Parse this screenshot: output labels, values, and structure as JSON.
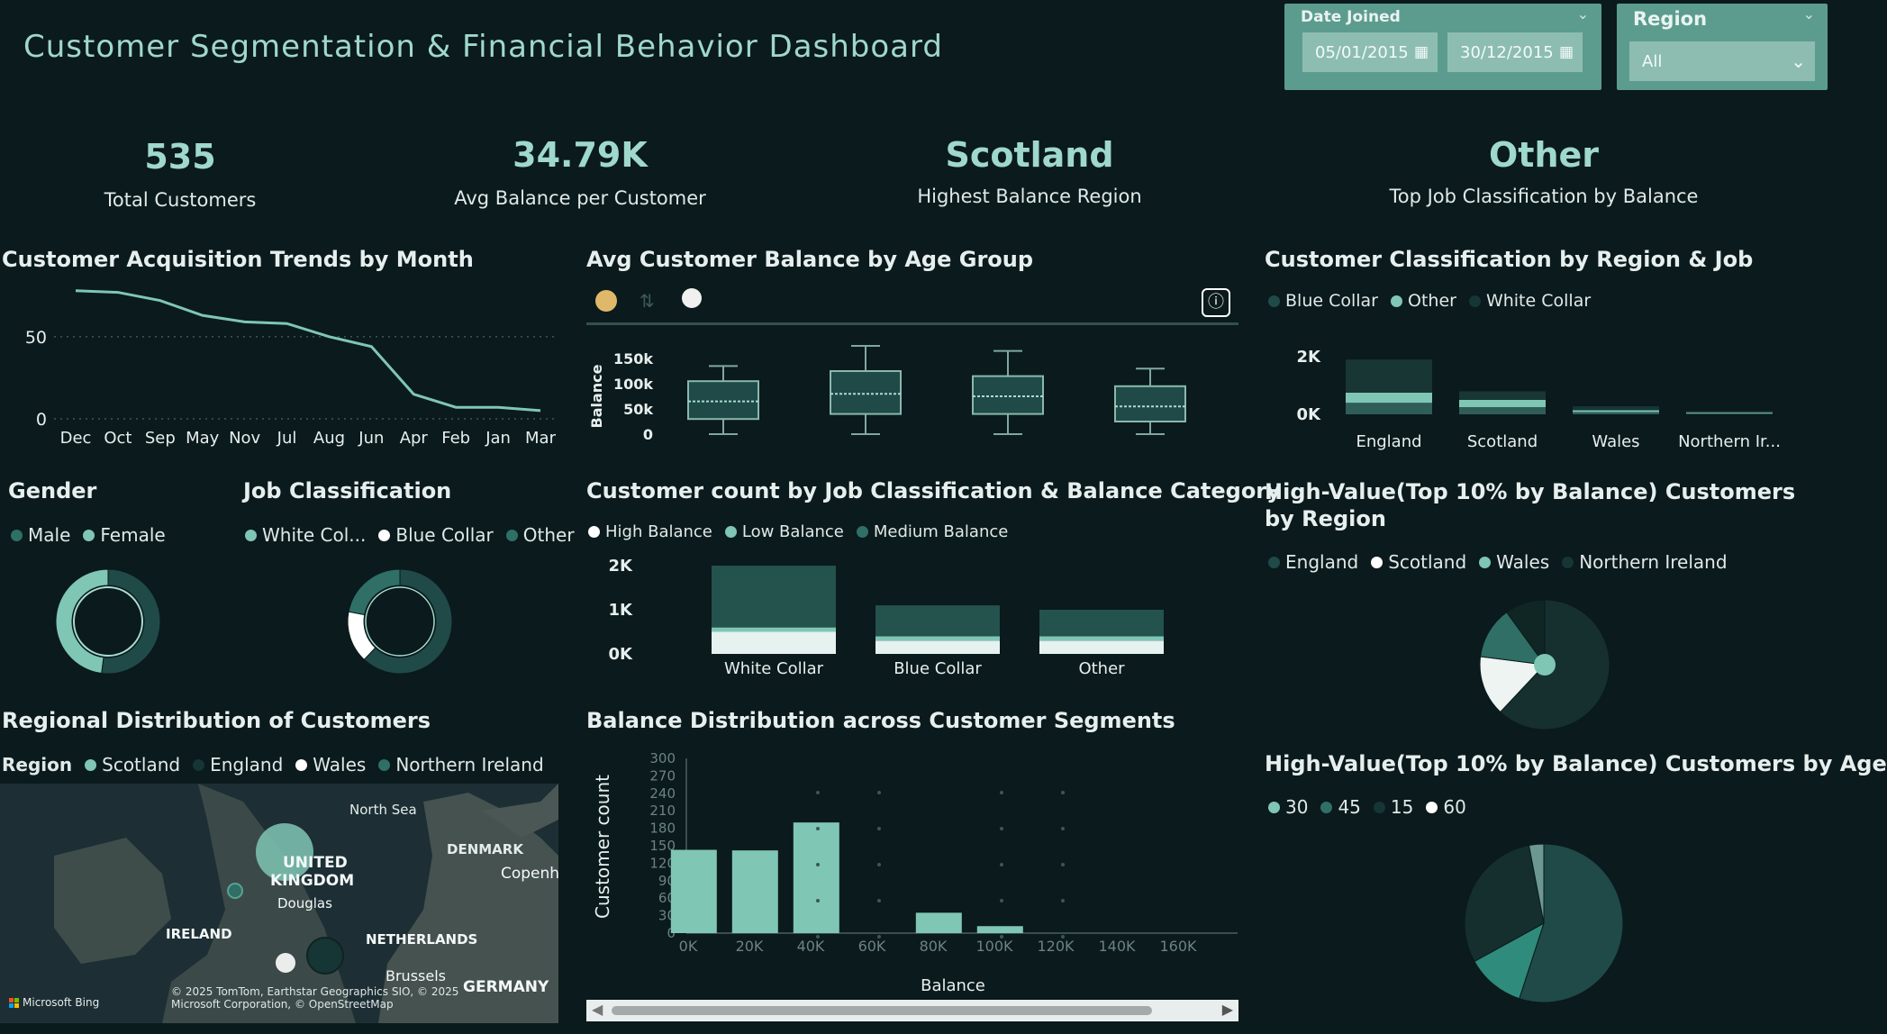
{
  "header": {
    "title": "Customer Segmentation & Financial Behavior Dashboard"
  },
  "filters": {
    "date_joined": {
      "label": "Date Joined",
      "start": "05/01/2015",
      "end": "30/12/2015"
    },
    "region": {
      "label": "Region",
      "value": "All"
    }
  },
  "kpis": [
    {
      "value": "535",
      "label": "Total Customers"
    },
    {
      "value": "34.79K",
      "label": "Avg Balance per Customer"
    },
    {
      "value": "Scotland",
      "label": "Highest Balance Region"
    },
    {
      "value": "Other",
      "label": "Top Job Classification by Balance"
    }
  ],
  "colors": {
    "bg": "#0b1a1c",
    "accent": "#7fc6b5",
    "accent_light": "#a8dccf",
    "teal_dark": "#1f4a47",
    "teal_mid": "#2f6f66",
    "white": "#ffffff"
  },
  "acquisition": {
    "title": "Customer Acquisition Trends by Month",
    "chart_data": {
      "type": "line",
      "categories": [
        "Dec",
        "Oct",
        "Sep",
        "May",
        "Nov",
        "Jul",
        "Aug",
        "Jun",
        "Apr",
        "Feb",
        "Jan",
        "Mar"
      ],
      "values": [
        78,
        77,
        72,
        63,
        59,
        58,
        50,
        44,
        15,
        7,
        7,
        5
      ],
      "yticks": [
        "50",
        "0"
      ],
      "ylim": [
        0,
        85
      ]
    }
  },
  "age_balance": {
    "title": "Avg Customer Balance by Age Group",
    "icons": [
      "palette-icon",
      "sort-icon",
      "globe-icon",
      "info-icon"
    ],
    "chart_data": {
      "type": "box",
      "ylabel": "Balance",
      "yticks": [
        "150k",
        "100k",
        "50k",
        "0"
      ],
      "ylim": [
        0,
        150000
      ],
      "boxes": [
        {
          "min": 0,
          "q1": 30000,
          "median": 65000,
          "q3": 105000,
          "max": 135000
        },
        {
          "min": 0,
          "q1": 40000,
          "median": 80000,
          "q3": 125000,
          "max": 175000
        },
        {
          "min": 0,
          "q1": 40000,
          "median": 75000,
          "q3": 115000,
          "max": 165000
        },
        {
          "min": 0,
          "q1": 25000,
          "median": 55000,
          "q3": 95000,
          "max": 130000
        }
      ]
    }
  },
  "region_job": {
    "title": "Customer Classification by Region & Job",
    "legend": [
      {
        "label": "Blue Collar",
        "color": "#1f4a47"
      },
      {
        "label": "Other",
        "color": "#7fc6b5"
      },
      {
        "label": "White Collar",
        "color": "#153634"
      }
    ],
    "chart_data": {
      "type": "bar",
      "stacked": true,
      "categories": [
        "England",
        "Scotland",
        "Wales",
        "Northern Ir..."
      ],
      "yticks": [
        "2K",
        "0K"
      ],
      "ylim": [
        0,
        2500
      ],
      "series": [
        {
          "name": "Blue Collar",
          "values": [
            400,
            250,
            80,
            40
          ]
        },
        {
          "name": "Other",
          "values": [
            350,
            250,
            60,
            30
          ]
        },
        {
          "name": "White Collar",
          "values": [
            1150,
            300,
            140,
            40
          ]
        }
      ]
    }
  },
  "gender": {
    "title": "Gender",
    "legend": [
      {
        "label": "Male",
        "color": "#2f6f66"
      },
      {
        "label": "Female",
        "color": "#7fc6b5"
      }
    ],
    "chart_data": {
      "type": "pie",
      "labels": [
        "Male",
        "Female"
      ],
      "values": [
        52,
        48
      ]
    }
  },
  "job_class": {
    "title": "Job Classification",
    "legend": [
      {
        "label": "White Col...",
        "color": "#7fc6b5"
      },
      {
        "label": "Blue Collar",
        "color": "#ffffff"
      },
      {
        "label": "Other",
        "color": "#2f6f66"
      }
    ],
    "chart_data": {
      "type": "pie",
      "labels": [
        "White Col...",
        "Blue Collar",
        "Other"
      ],
      "values": [
        62,
        16,
        22
      ]
    }
  },
  "job_balance": {
    "title": "Customer count by Job Classification & Balance Category",
    "legend": [
      {
        "label": "High Balance",
        "color": "#ffffff"
      },
      {
        "label": "Low Balance",
        "color": "#7fc6b5"
      },
      {
        "label": "Medium Balance",
        "color": "#2f6f66"
      }
    ],
    "chart_data": {
      "type": "bar",
      "stacked": true,
      "categories": [
        "White Collar",
        "Blue Collar",
        "Other"
      ],
      "yticks": [
        "2K",
        "1K",
        "0K"
      ],
      "ylim": [
        0,
        2000
      ],
      "series": [
        {
          "name": "High Balance",
          "values": [
            500,
            300,
            300
          ]
        },
        {
          "name": "Low Balance",
          "values": [
            100,
            100,
            100
          ]
        },
        {
          "name": "Medium Balance",
          "values": [
            1400,
            700,
            600
          ]
        }
      ]
    }
  },
  "high_value_region": {
    "title": "High-Value(Top 10% by Balance) Customers by Region",
    "legend": [
      {
        "label": "England",
        "color": "#1f4a47"
      },
      {
        "label": "Scotland",
        "color": "#ffffff"
      },
      {
        "label": "Wales",
        "color": "#7fc6b5"
      },
      {
        "label": "Northern Ireland",
        "color": "#153634"
      }
    ],
    "chart_data": {
      "type": "pie",
      "labels": [
        "England",
        "Scotland",
        "Wales",
        "Northern Ireland"
      ],
      "values": [
        62,
        15,
        13,
        10
      ]
    }
  },
  "regional": {
    "title": "Regional Distribution of Customers",
    "legend_label": "Region",
    "legend": [
      {
        "label": "Scotland",
        "color": "#7fc6b5"
      },
      {
        "label": "England",
        "color": "#153634"
      },
      {
        "label": "Wales",
        "color": "#ffffff"
      },
      {
        "label": "Northern Ireland",
        "color": "#2f6f66"
      }
    ],
    "map_labels": [
      "North Sea",
      "DENMARK",
      "UNITED",
      "KINGDOM",
      "Copenh",
      "Douglas",
      "IRELAND",
      "NETHERLANDS",
      "Brussels",
      "GERMANY"
    ],
    "attribution": "© 2025 TomTom, Earthstar Geographics SIO, © 2025 Microsoft Corporation, © OpenStreetMap",
    "brand": "Microsoft Bing"
  },
  "balance_dist": {
    "title": "Balance Distribution across Customer Segments",
    "chart_data": {
      "type": "bar",
      "xlabel": "Balance",
      "ylabel": "Customer count",
      "yticks": [
        "300",
        "270",
        "240",
        "210",
        "180",
        "150",
        "120",
        "90",
        "60",
        "30",
        "0"
      ],
      "xticks": [
        "0K",
        "20K",
        "40K",
        "60K",
        "80K",
        "100K",
        "120K",
        "140K",
        "160K"
      ],
      "ylim": [
        0,
        300
      ],
      "bins": [
        {
          "x0": 2000,
          "x1": 17000,
          "value": 143
        },
        {
          "x0": 22000,
          "x1": 37000,
          "value": 142
        },
        {
          "x0": 42000,
          "x1": 57000,
          "value": 190
        },
        {
          "x0": 82000,
          "x1": 97000,
          "value": 35
        },
        {
          "x0": 102000,
          "x1": 117000,
          "value": 12
        }
      ]
    }
  },
  "high_value_age": {
    "title": "High-Value(Top 10% by Balance) Customers by Age",
    "legend": [
      {
        "label": "30",
        "color": "#7fc6b5"
      },
      {
        "label": "45",
        "color": "#2f6f66"
      },
      {
        "label": "15",
        "color": "#153634"
      },
      {
        "label": "60",
        "color": "#ffffff"
      }
    ],
    "chart_data": {
      "type": "pie",
      "labels": [
        "30",
        "45",
        "15",
        "60"
      ],
      "values": [
        55,
        12,
        30,
        3
      ]
    }
  }
}
